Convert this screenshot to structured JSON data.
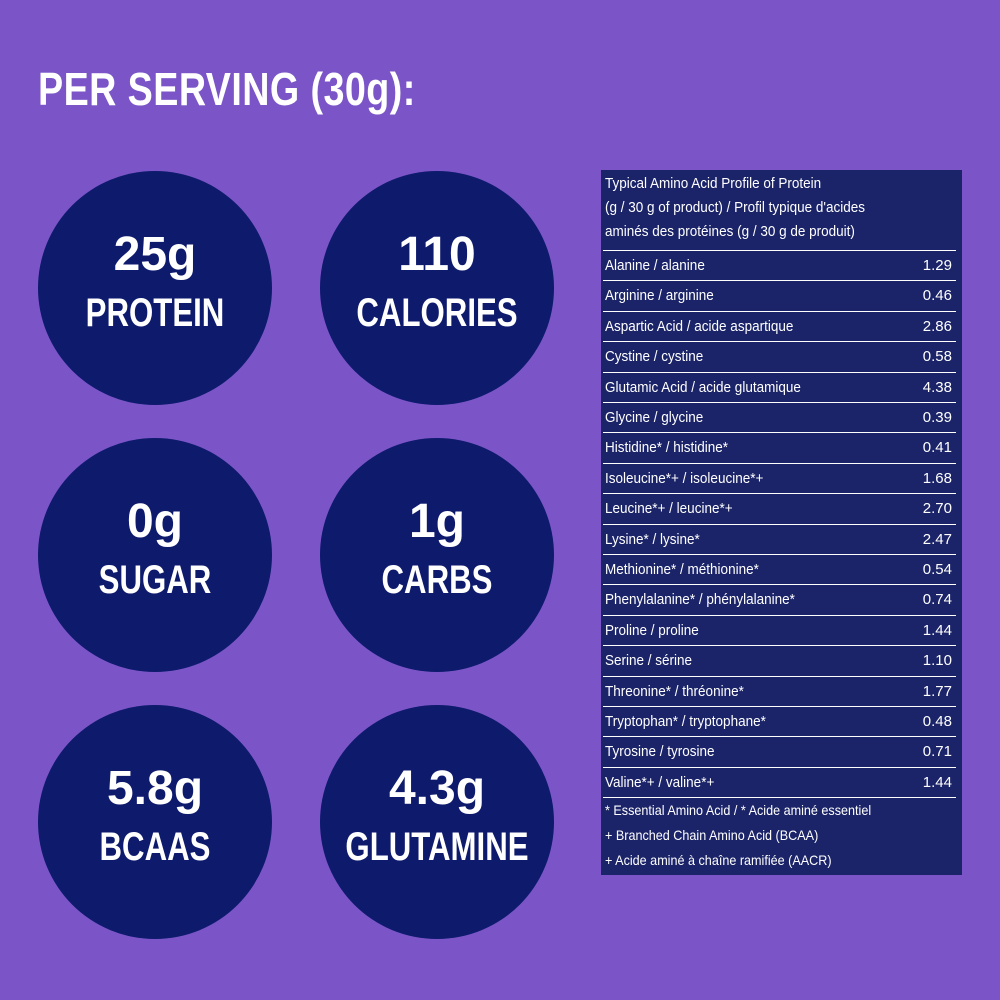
{
  "title": "PER SERVING (30g):",
  "stats": [
    {
      "value": "25g",
      "label": "PROTEIN"
    },
    {
      "value": "110",
      "label": "CALORIES"
    },
    {
      "value": "0g",
      "label": "SUGAR"
    },
    {
      "value": "1g",
      "label": "CARBS"
    },
    {
      "value": "5.8g",
      "label": "BCAAS"
    },
    {
      "value": "4.3g",
      "label": "GLUTAMINE"
    }
  ],
  "table": {
    "header": [
      "Typical Amino Acid Profile of Protein",
      "(g / 30 g of product) / Profil typique d'acides",
      "aminés des protéines (g / 30 g de produit)"
    ],
    "rows": [
      [
        "Alanine / alanine",
        "1.29"
      ],
      [
        "Arginine / arginine",
        "0.46"
      ],
      [
        "Aspartic Acid / acide aspartique",
        "2.86"
      ],
      [
        "Cystine / cystine",
        "0.58"
      ],
      [
        "Glutamic Acid / acide glutamique",
        "4.38"
      ],
      [
        "Glycine / glycine",
        "0.39"
      ],
      [
        "Histidine* / histidine*",
        "0.41"
      ],
      [
        "Isoleucine*+ / isoleucine*+",
        "1.68"
      ],
      [
        "Leucine*+ / leucine*+",
        "2.70"
      ],
      [
        "Lysine* / lysine*",
        "2.47"
      ],
      [
        "Methionine* / méthionine*",
        "0.54"
      ],
      [
        "Phenylalanine* / phénylalanine*",
        "0.74"
      ],
      [
        "Proline / proline",
        "1.44"
      ],
      [
        "Serine / sérine",
        "1.10"
      ],
      [
        "Threonine* / thréonine*",
        "1.77"
      ],
      [
        "Tryptophan* / tryptophane*",
        "0.48"
      ],
      [
        "Tyrosine / tyrosine",
        "0.71"
      ],
      [
        "Valine*+ / valine*+",
        "1.44"
      ]
    ],
    "footnotes": [
      "* Essential Amino Acid / * Acide aminé essentiel",
      "+ Branched Chain Amino Acid (BCAA)",
      "+ Acide aminé à chaîne ramifiée (AACR)"
    ]
  }
}
